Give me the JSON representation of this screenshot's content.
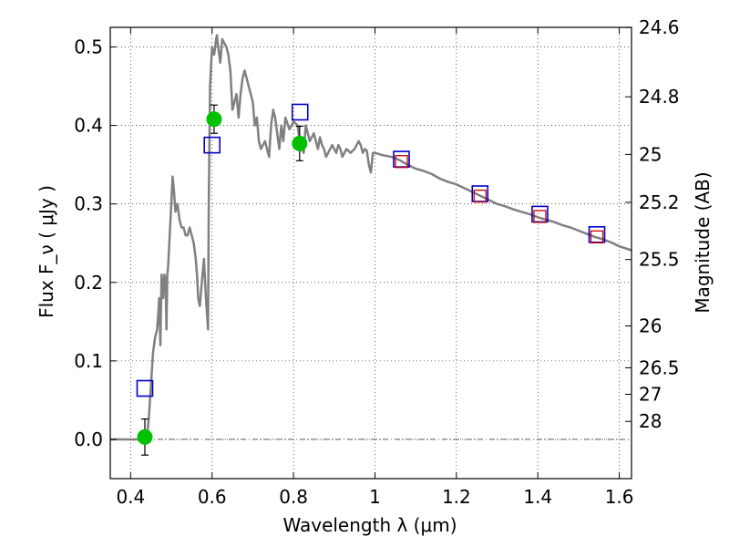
{
  "chart_data": {
    "type": "line",
    "xlabel": "Wavelength  λ (μm)",
    "ylabel": "Flux  F_ν  ( μJy )",
    "ylabel_right": "Magnitude (AB)",
    "xlim": [
      0.35,
      1.63
    ],
    "ylim": [
      -0.05,
      0.525
    ],
    "grid": true,
    "x_ticks": [
      0.4,
      0.6,
      0.8,
      1.0,
      1.2,
      1.4,
      1.6
    ],
    "x_tick_labels": [
      "0.4",
      "0.6",
      "0.8",
      "1",
      "1.2",
      "1.4",
      "1.6"
    ],
    "y_ticks": [
      0.0,
      0.1,
      0.2,
      0.3,
      0.4,
      0.5
    ],
    "y_tick_labels": [
      "0.0",
      "0.1",
      "0.2",
      "0.3",
      "0.4",
      "0.5"
    ],
    "mag_ticks": [
      {
        "label": "24.6",
        "flux": 0.5248
      },
      {
        "label": "24.8",
        "flux": 0.4365
      },
      {
        "label": "25",
        "flux": 0.3631
      },
      {
        "label": "25.2",
        "flux": 0.302
      },
      {
        "label": "25.5",
        "flux": 0.2291
      },
      {
        "label": "26",
        "flux": 0.1445
      },
      {
        "label": "26.5",
        "flux": 0.0912
      },
      {
        "label": "27",
        "flux": 0.0575
      },
      {
        "label": "28",
        "flux": 0.0229
      }
    ],
    "series": [
      {
        "kind": "model-spectrum",
        "color": "#808080",
        "x": [
          0.35,
          0.43,
          0.44,
          0.445,
          0.45,
          0.455,
          0.46,
          0.465,
          0.468,
          0.47,
          0.473,
          0.476,
          0.48,
          0.483,
          0.486,
          0.488,
          0.49,
          0.492,
          0.495,
          0.5,
          0.503,
          0.506,
          0.51,
          0.515,
          0.52,
          0.525,
          0.53,
          0.535,
          0.54,
          0.545,
          0.55,
          0.555,
          0.56,
          0.563,
          0.566,
          0.57,
          0.575,
          0.58,
          0.585,
          0.59,
          0.592,
          0.595,
          0.6,
          0.605,
          0.61,
          0.612,
          0.615,
          0.62,
          0.625,
          0.63,
          0.635,
          0.64,
          0.645,
          0.65,
          0.655,
          0.66,
          0.665,
          0.67,
          0.675,
          0.68,
          0.685,
          0.69,
          0.695,
          0.7,
          0.705,
          0.71,
          0.715,
          0.72,
          0.73,
          0.74,
          0.745,
          0.75,
          0.755,
          0.76,
          0.765,
          0.77,
          0.775,
          0.78,
          0.79,
          0.8,
          0.81,
          0.815,
          0.82,
          0.825,
          0.83,
          0.84,
          0.85,
          0.86,
          0.865,
          0.87,
          0.875,
          0.88,
          0.885,
          0.89,
          0.895,
          0.9,
          0.905,
          0.91,
          0.915,
          0.92,
          0.93,
          0.94,
          0.95,
          0.96,
          0.965,
          0.97,
          0.975,
          0.98,
          0.985,
          0.99,
          0.995,
          1.0,
          1.02,
          1.04,
          1.06,
          1.08,
          1.1,
          1.12,
          1.14,
          1.16,
          1.18,
          1.2,
          1.22,
          1.24,
          1.26,
          1.28,
          1.3,
          1.32,
          1.34,
          1.36,
          1.38,
          1.4,
          1.42,
          1.44,
          1.46,
          1.48,
          1.5,
          1.52,
          1.54,
          1.56,
          1.58,
          1.6,
          1.63
        ],
        "y": [
          0.0,
          0.0,
          0.001,
          0.03,
          0.07,
          0.11,
          0.13,
          0.14,
          0.16,
          0.18,
          0.12,
          0.21,
          0.18,
          0.21,
          0.2,
          0.14,
          0.21,
          0.22,
          0.25,
          0.3,
          0.335,
          0.32,
          0.29,
          0.3,
          0.28,
          0.27,
          0.27,
          0.26,
          0.26,
          0.27,
          0.26,
          0.25,
          0.23,
          0.21,
          0.18,
          0.17,
          0.2,
          0.23,
          0.18,
          0.14,
          0.3,
          0.45,
          0.5,
          0.49,
          0.51,
          0.515,
          0.5,
          0.48,
          0.51,
          0.505,
          0.5,
          0.49,
          0.47,
          0.42,
          0.43,
          0.44,
          0.41,
          0.44,
          0.46,
          0.47,
          0.46,
          0.45,
          0.44,
          0.43,
          0.4,
          0.41,
          0.38,
          0.37,
          0.38,
          0.36,
          0.4,
          0.42,
          0.41,
          0.39,
          0.37,
          0.4,
          0.38,
          0.41,
          0.395,
          0.405,
          0.4,
          0.38,
          0.37,
          0.365,
          0.4,
          0.38,
          0.39,
          0.37,
          0.385,
          0.375,
          0.37,
          0.36,
          0.365,
          0.37,
          0.375,
          0.37,
          0.365,
          0.375,
          0.37,
          0.36,
          0.37,
          0.365,
          0.37,
          0.38,
          0.375,
          0.365,
          0.37,
          0.368,
          0.35,
          0.34,
          0.365,
          0.365,
          0.362,
          0.36,
          0.356,
          0.35,
          0.345,
          0.342,
          0.338,
          0.332,
          0.328,
          0.325,
          0.32,
          0.315,
          0.31,
          0.305,
          0.3,
          0.297,
          0.293,
          0.29,
          0.287,
          0.283,
          0.28,
          0.277,
          0.273,
          0.27,
          0.266,
          0.262,
          0.258,
          0.255,
          0.251,
          0.246,
          0.241
        ]
      },
      {
        "kind": "photometry",
        "color": "#00c000",
        "points": [
          {
            "x": 0.435,
            "y": 0.003,
            "err": 0.023
          },
          {
            "x": 0.605,
            "y": 0.408,
            "err": 0.018
          },
          {
            "x": 0.815,
            "y": 0.377,
            "err": 0.022
          }
        ]
      },
      {
        "kind": "model-photometry",
        "color": "#0000cc",
        "points": [
          {
            "x": 0.435,
            "y": 0.065
          },
          {
            "x": 0.6,
            "y": 0.375
          },
          {
            "x": 0.816,
            "y": 0.417
          },
          {
            "x": 1.065,
            "y": 0.357
          },
          {
            "x": 1.258,
            "y": 0.313
          },
          {
            "x": 1.405,
            "y": 0.287
          },
          {
            "x": 1.545,
            "y": 0.261
          }
        ]
      },
      {
        "kind": "observed-nir",
        "color": "#cc0000",
        "points": [
          {
            "x": 1.065,
            "y": 0.354
          },
          {
            "x": 1.258,
            "y": 0.31
          },
          {
            "x": 1.405,
            "y": 0.284
          },
          {
            "x": 1.545,
            "y": 0.258
          }
        ]
      }
    ]
  }
}
